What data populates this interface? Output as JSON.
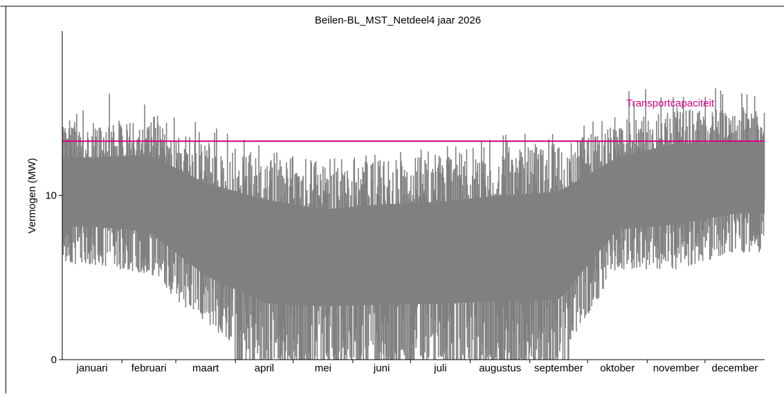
{
  "chart_data": {
    "type": "area",
    "title": "Beilen-BL_MST_Netdeel4 jaar 2026",
    "ylabel": "Vermogen (MW)",
    "xlabel": "",
    "ylim": [
      0,
      20
    ],
    "yticks": [
      0,
      10
    ],
    "grid": false,
    "months": [
      "januari",
      "februari",
      "maart",
      "april",
      "mei",
      "juni",
      "juli",
      "augustus",
      "september",
      "oktober",
      "november",
      "december"
    ],
    "month_days": [
      31,
      28,
      31,
      30,
      31,
      30,
      31,
      31,
      30,
      31,
      30,
      31
    ],
    "series": [
      {
        "color": "#808080",
        "monthly_low": [
          5.8,
          5.2,
          2.0,
          0.0,
          0.0,
          0.0,
          0.0,
          0.0,
          0.0,
          5.5,
          5.5,
          6.5
        ],
        "monthly_high": [
          14.2,
          14.6,
          13.3,
          12.6,
          11.8,
          12.2,
          12.4,
          12.9,
          13.2,
          14.3,
          15.4,
          15.2
        ],
        "monthly_peak": [
          16.3,
          16.0,
          14.6,
          13.0,
          12.2,
          12.6,
          12.9,
          13.9,
          13.8,
          16.6,
          17.0,
          17.0
        ]
      }
    ],
    "reference_line": {
      "label": "Transportcapaciteit",
      "value": 13.3,
      "color": "#d6007e"
    }
  }
}
